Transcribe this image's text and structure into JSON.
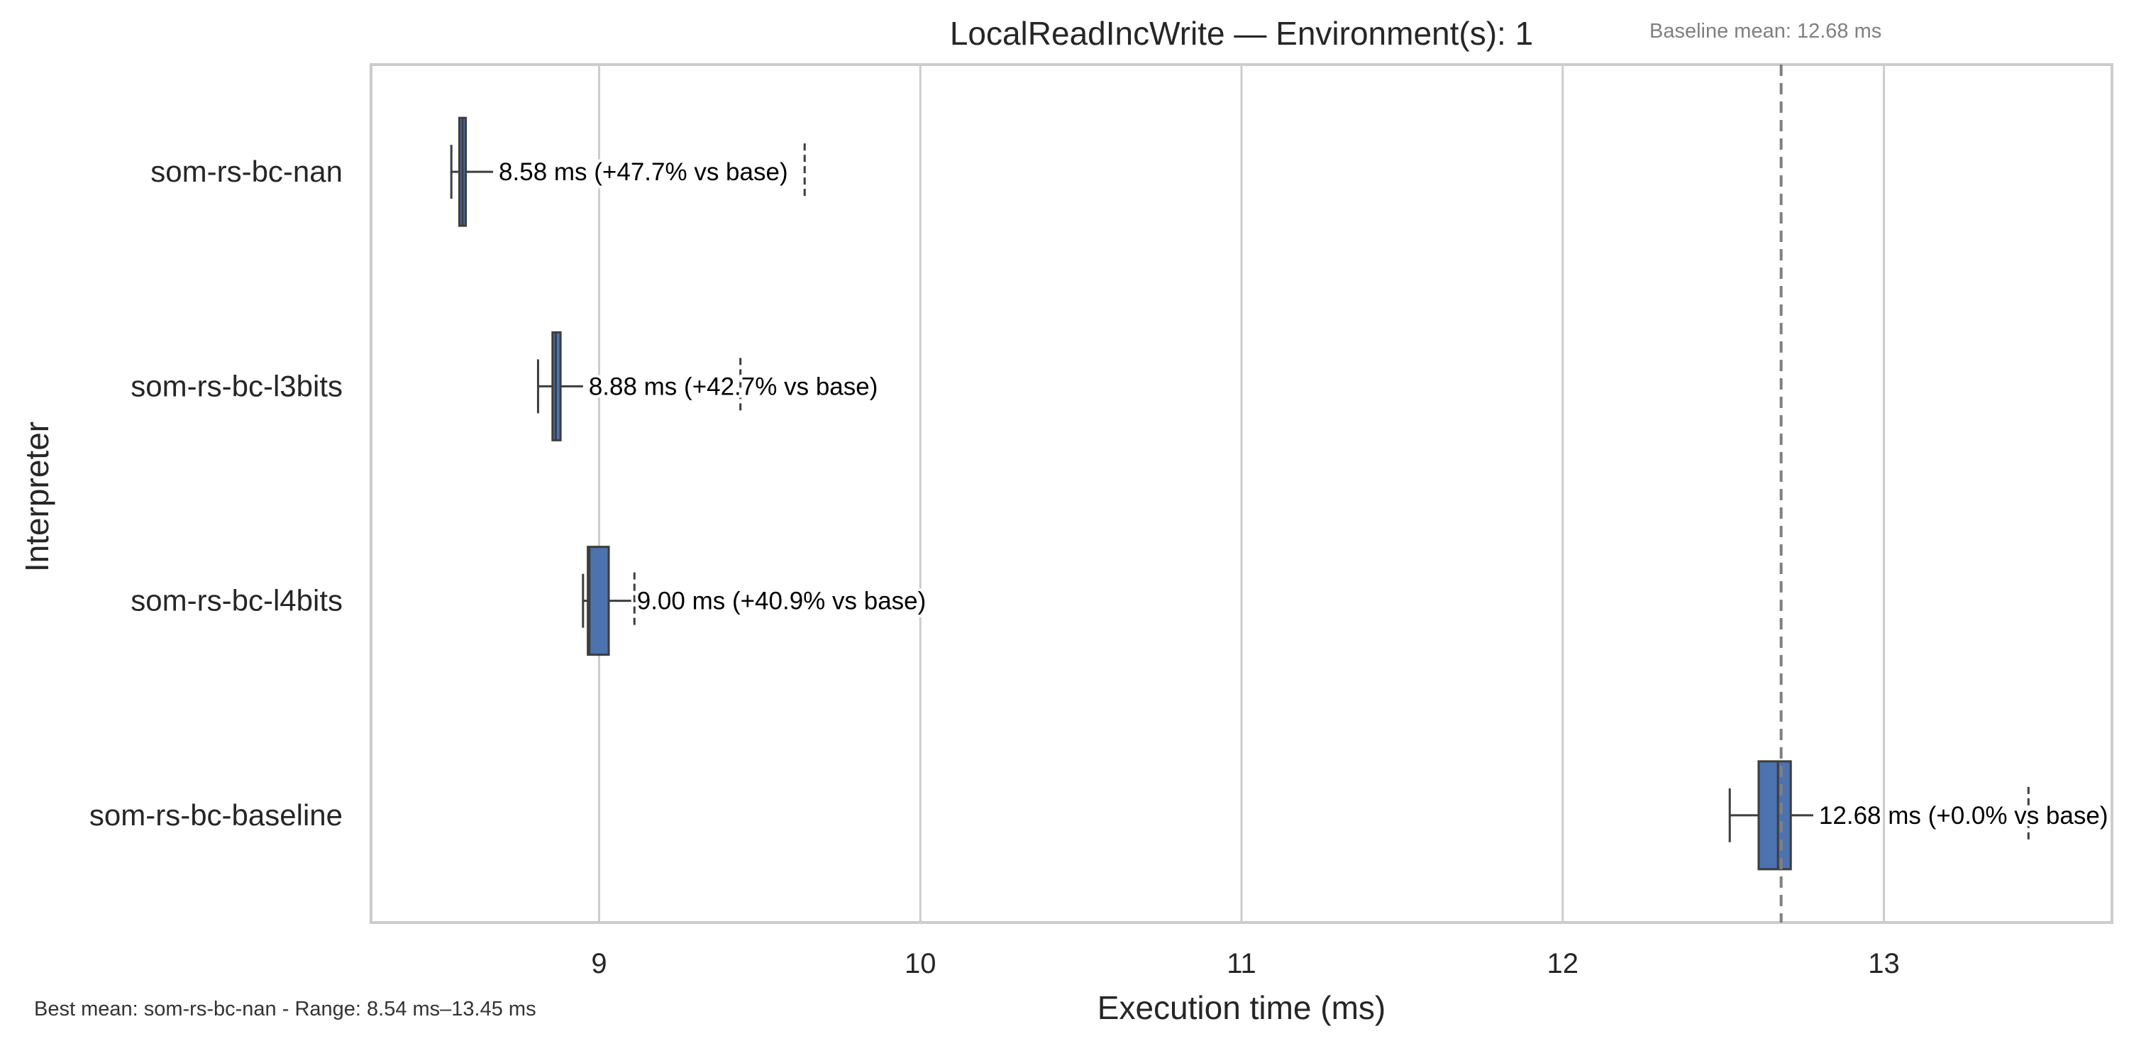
{
  "chart_data": {
    "type": "box",
    "orientation": "horizontal",
    "title": "LocalReadIncWrite — Environment(s): 1",
    "xlabel": "Execution time (ms)",
    "ylabel": "Interpreter",
    "xlim": [
      8.29,
      13.71
    ],
    "xticks": [
      9,
      10,
      11,
      12,
      13
    ],
    "grid": "vertical",
    "baseline": {
      "value": 12.68,
      "label": "Baseline mean: 12.68 ms",
      "color": "#808080"
    },
    "box_color": "#4c72b0",
    "edge_color": "#3d3d3d",
    "categories": [
      "som-rs-bc-nan",
      "som-rs-bc-l3bits",
      "som-rs-bc-l4bits",
      "som-rs-bc-baseline"
    ],
    "series": [
      {
        "category": "som-rs-bc-nan",
        "whisker_low": 8.54,
        "q1": 8.565,
        "median": 8.575,
        "q3": 8.585,
        "whisker_high": 8.67,
        "ci_marker": 9.64,
        "mean": 8.58,
        "annotation": "8.58 ms  (+47.7% vs base)"
      },
      {
        "category": "som-rs-bc-l3bits",
        "whisker_low": 8.81,
        "q1": 8.855,
        "median": 8.865,
        "q3": 8.88,
        "whisker_high": 8.95,
        "ci_marker": 9.44,
        "mean": 8.88,
        "annotation": "8.88 ms  (+42.7% vs base)"
      },
      {
        "category": "som-rs-bc-l4bits",
        "whisker_low": 8.95,
        "q1": 8.965,
        "median": 8.97,
        "q3": 9.03,
        "whisker_high": 9.1,
        "ci_marker": 9.11,
        "mean": 9.0,
        "annotation": "9.00 ms  (+40.9% vs base)"
      },
      {
        "category": "som-rs-bc-baseline",
        "whisker_low": 12.52,
        "q1": 12.61,
        "median": 12.67,
        "q3": 12.71,
        "whisker_high": 12.78,
        "ci_marker": 13.45,
        "mean": 12.68,
        "annotation": "12.68 ms  (+0.0% vs base)"
      }
    ]
  },
  "footnote": "Best mean: som-rs-bc-nan - Range: 8.54 ms–13.45 ms"
}
